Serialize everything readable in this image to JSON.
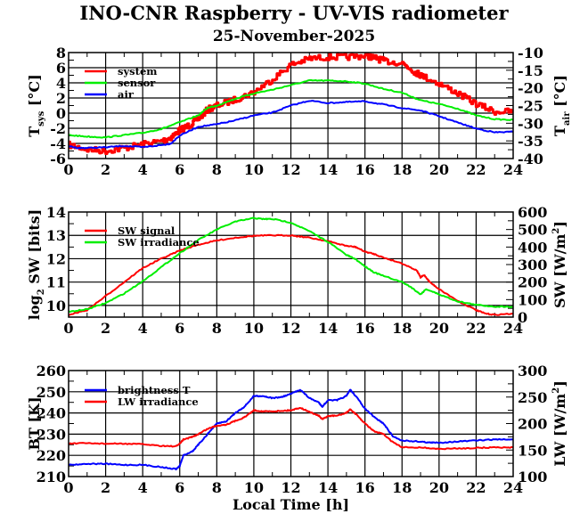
{
  "header": {
    "title": "INO-CNR Raspberry - UV-VIS radiometer",
    "date": "25-November-2025"
  },
  "chart_data": [
    {
      "type": "line",
      "id": "temperature",
      "ylabel_left": "T",
      "ylabel_left_sub": "sys",
      "ylabel_left_unit": " [°C]",
      "ylabel_right": "T",
      "ylabel_right_sub": "air",
      "ylabel_right_unit": " [°C]",
      "xlim": [
        0,
        24
      ],
      "ylim_left": [
        -6,
        8
      ],
      "ylim_right": [
        -40,
        -10
      ],
      "xticks": [
        "0",
        "2",
        "4",
        "6",
        "8",
        "10",
        "12",
        "14",
        "16",
        "18",
        "20",
        "22",
        "24"
      ],
      "yticks_left": [
        "-6",
        "-4",
        "-2",
        "0",
        "2",
        "4",
        "6",
        "8"
      ],
      "yticks_right": [
        "-40",
        "-35",
        "-30",
        "-25",
        "-20",
        "-15",
        "-10"
      ],
      "grid": true,
      "legend": "top-left",
      "series": [
        {
          "name": "system",
          "axis": "left",
          "color": "#ff0000",
          "noisy": true,
          "x": [
            0,
            1,
            2,
            3,
            4,
            5,
            5.5,
            6,
            6.5,
            7,
            7.5,
            8,
            9,
            10,
            11,
            12,
            13,
            14,
            15,
            16,
            16.5,
            17,
            18,
            18.7,
            19,
            20,
            21,
            22,
            23,
            24
          ],
          "y": [
            -4.2,
            -4.8,
            -5.0,
            -4.6,
            -4.1,
            -3.7,
            -3.2,
            -2.2,
            -1.6,
            -0.7,
            0.5,
            1.0,
            1.8,
            2.8,
            4.5,
            6.4,
            7.2,
            7.4,
            7.4,
            7.6,
            7.3,
            6.9,
            6.6,
            5.4,
            5.0,
            3.9,
            2.6,
            1.2,
            0.2,
            0.2
          ]
        },
        {
          "name": "sensor",
          "axis": "left",
          "color": "#00ee00",
          "noisy": false,
          "x": [
            0,
            1,
            2,
            3,
            4,
            5,
            6,
            7,
            7.5,
            8,
            9,
            10,
            11,
            12,
            13,
            14,
            15,
            16,
            17,
            18,
            19,
            20,
            21,
            22,
            23,
            24
          ],
          "y": [
            -2.9,
            -3.1,
            -3.2,
            -2.9,
            -2.6,
            -2.1,
            -1.2,
            -0.3,
            0.7,
            1.0,
            1.9,
            2.6,
            3.1,
            3.7,
            4.3,
            4.3,
            4.2,
            3.9,
            3.2,
            2.7,
            1.7,
            1.2,
            0.6,
            -0.3,
            -0.8,
            -0.9
          ]
        },
        {
          "name": "air",
          "axis": "right",
          "color": "#0000ff",
          "noisy": false,
          "x": [
            0,
            0.5,
            1,
            2,
            3,
            4,
            5,
            5.5,
            6,
            7,
            8,
            9,
            10,
            11,
            12,
            13,
            14,
            15,
            16,
            17,
            18,
            19,
            20,
            21,
            22,
            23,
            24
          ],
          "y": [
            -36.5,
            -37.0,
            -37.0,
            -36.8,
            -36.4,
            -36.8,
            -36.2,
            -35.8,
            -33.5,
            -31.0,
            -30.3,
            -29.2,
            -27.8,
            -27.0,
            -25.0,
            -23.6,
            -24.3,
            -24.0,
            -23.8,
            -24.7,
            -25.7,
            -26.4,
            -28.0,
            -29.8,
            -31.5,
            -32.6,
            -32.4
          ]
        }
      ]
    },
    {
      "type": "line",
      "id": "shortwave",
      "ylabel_left": "log",
      "ylabel_left_sub": "2",
      "ylabel_left_unit": " SW [bits]",
      "ylabel_right": "SW [W/m",
      "ylabel_right_sup": "2",
      "ylabel_right_unit": "]",
      "xlim": [
        0,
        24
      ],
      "ylim_left": [
        9.5,
        14
      ],
      "ylim_right": [
        0,
        600
      ],
      "xticks": [
        "0",
        "2",
        "4",
        "6",
        "8",
        "10",
        "12",
        "14",
        "16",
        "18",
        "20",
        "22",
        "24"
      ],
      "yticks_left": [
        "10",
        "11",
        "12",
        "13",
        "14"
      ],
      "yticks_right": [
        "0",
        "100",
        "200",
        "300",
        "400",
        "500",
        "600"
      ],
      "grid": true,
      "legend": "top-left",
      "series": [
        {
          "name": "SW signal",
          "axis": "left",
          "color": "#ff0000",
          "x": [
            0,
            1,
            2,
            3,
            4,
            5,
            6,
            7,
            8,
            9,
            10,
            11,
            12,
            13,
            14,
            15,
            15.5,
            16,
            16.5,
            17,
            18,
            18.8,
            19,
            19.2,
            19.5,
            20,
            21,
            22,
            22.5,
            23,
            24
          ],
          "y": [
            9.6,
            9.8,
            10.4,
            11.0,
            11.6,
            12.0,
            12.35,
            12.6,
            12.78,
            12.9,
            12.98,
            13.0,
            13.0,
            12.9,
            12.75,
            12.55,
            12.5,
            12.3,
            12.2,
            12.05,
            11.8,
            11.5,
            11.2,
            11.3,
            11.0,
            10.7,
            10.2,
            9.8,
            9.65,
            9.6,
            9.65
          ]
        },
        {
          "name": "SW irradiance",
          "axis": "right",
          "color": "#00ee00",
          "x": [
            0,
            1,
            2,
            3,
            4,
            5,
            6,
            7,
            8,
            9,
            10,
            10.5,
            11,
            12,
            13,
            14,
            15,
            15.5,
            16,
            16.5,
            17,
            18,
            18.5,
            19,
            19.3,
            20,
            21,
            22,
            23,
            24
          ],
          "y": [
            30,
            45,
            80,
            135,
            205,
            285,
            365,
            440,
            500,
            545,
            565,
            560,
            560,
            540,
            490,
            430,
            355,
            330,
            290,
            255,
            235,
            200,
            170,
            130,
            160,
            130,
            90,
            70,
            60,
            60
          ]
        }
      ]
    },
    {
      "type": "line",
      "id": "longwave",
      "xlabel": "Local Time [h]",
      "ylabel_left": "BT [K]",
      "ylabel_right": "LW [W/m",
      "ylabel_right_sup": "2",
      "ylabel_right_unit": "]",
      "xlim": [
        0,
        24
      ],
      "ylim_left": [
        210,
        260
      ],
      "ylim_right": [
        100,
        300
      ],
      "xticks": [
        "0",
        "2",
        "4",
        "6",
        "8",
        "10",
        "12",
        "14",
        "16",
        "18",
        "20",
        "22",
        "24"
      ],
      "yticks_left": [
        "210",
        "220",
        "230",
        "240",
        "250",
        "260"
      ],
      "yticks_right": [
        "100",
        "150",
        "200",
        "250",
        "300"
      ],
      "grid": true,
      "legend": "top-left",
      "series": [
        {
          "name": "brightness T",
          "axis": "left",
          "color": "#0000ff",
          "x": [
            0,
            1,
            2,
            3,
            4,
            5,
            5.8,
            6.0,
            6.2,
            6.7,
            7,
            7.5,
            8,
            8.5,
            9,
            9.5,
            10,
            10.5,
            11,
            11.5,
            12,
            12.5,
            13,
            13.5,
            13.7,
            14,
            14.5,
            15,
            15.2,
            15.5,
            16,
            16.5,
            17,
            17.5,
            18,
            19,
            19.5,
            20,
            21,
            22,
            23,
            24
          ],
          "y": [
            215.5,
            216,
            216,
            215.5,
            215.5,
            214.5,
            213.5,
            215,
            220,
            222,
            225,
            230,
            235,
            236,
            240,
            243,
            248,
            248,
            247,
            247.5,
            249,
            251,
            247,
            245,
            243,
            246,
            246,
            248,
            251,
            248,
            242,
            238,
            235,
            229,
            227,
            226.5,
            226,
            226,
            226.5,
            227,
            227.5,
            227.5
          ]
        },
        {
          "name": "LW irradiance",
          "axis": "right",
          "color": "#ff0000",
          "x": [
            0,
            1,
            2,
            3,
            4,
            5,
            5.8,
            6.0,
            6.2,
            6.7,
            7,
            7.5,
            8,
            8.5,
            9,
            9.5,
            10,
            10.5,
            11,
            11.5,
            12,
            12.5,
            13,
            13.5,
            13.7,
            14,
            14.5,
            15,
            15.2,
            15.5,
            16,
            16.5,
            17,
            17.5,
            18,
            19,
            20,
            21,
            22,
            23,
            24
          ],
          "y": [
            162,
            163,
            162,
            162,
            161,
            158,
            157,
            162,
            170,
            175,
            180,
            190,
            196,
            198,
            205,
            212,
            225,
            223,
            223,
            224,
            225,
            230,
            222,
            215,
            208,
            214,
            215,
            220,
            227,
            218,
            200,
            185,
            180,
            165,
            155,
            155,
            152,
            153,
            154,
            155,
            155
          ]
        }
      ]
    }
  ]
}
